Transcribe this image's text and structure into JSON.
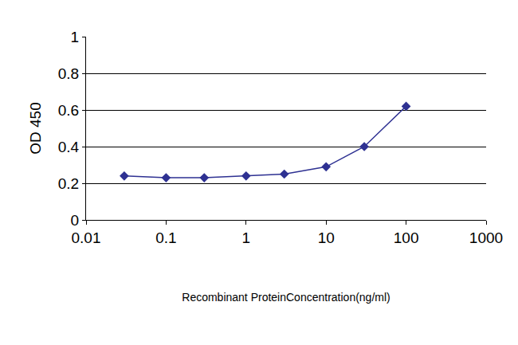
{
  "chart_data": {
    "type": "line",
    "x_label": "Recombinant ProteinConcentration(ng/ml)",
    "y_label": "OD 450",
    "x": [
      0.03,
      0.1,
      0.3,
      1,
      3,
      10,
      30,
      100
    ],
    "values": [
      0.24,
      0.23,
      0.23,
      0.24,
      0.25,
      0.29,
      0.4,
      0.62
    ],
    "color": "#2e3192",
    "marker": "diamond",
    "log": "x",
    "xlim": [
      0.01,
      1000
    ],
    "xticks": [
      0.01,
      0.1,
      1,
      10,
      100,
      1000
    ],
    "ylim": [
      0,
      1
    ],
    "yticks": [
      0,
      0.2,
      0.4,
      0.6,
      0.8,
      1
    ],
    "grid": true
  }
}
